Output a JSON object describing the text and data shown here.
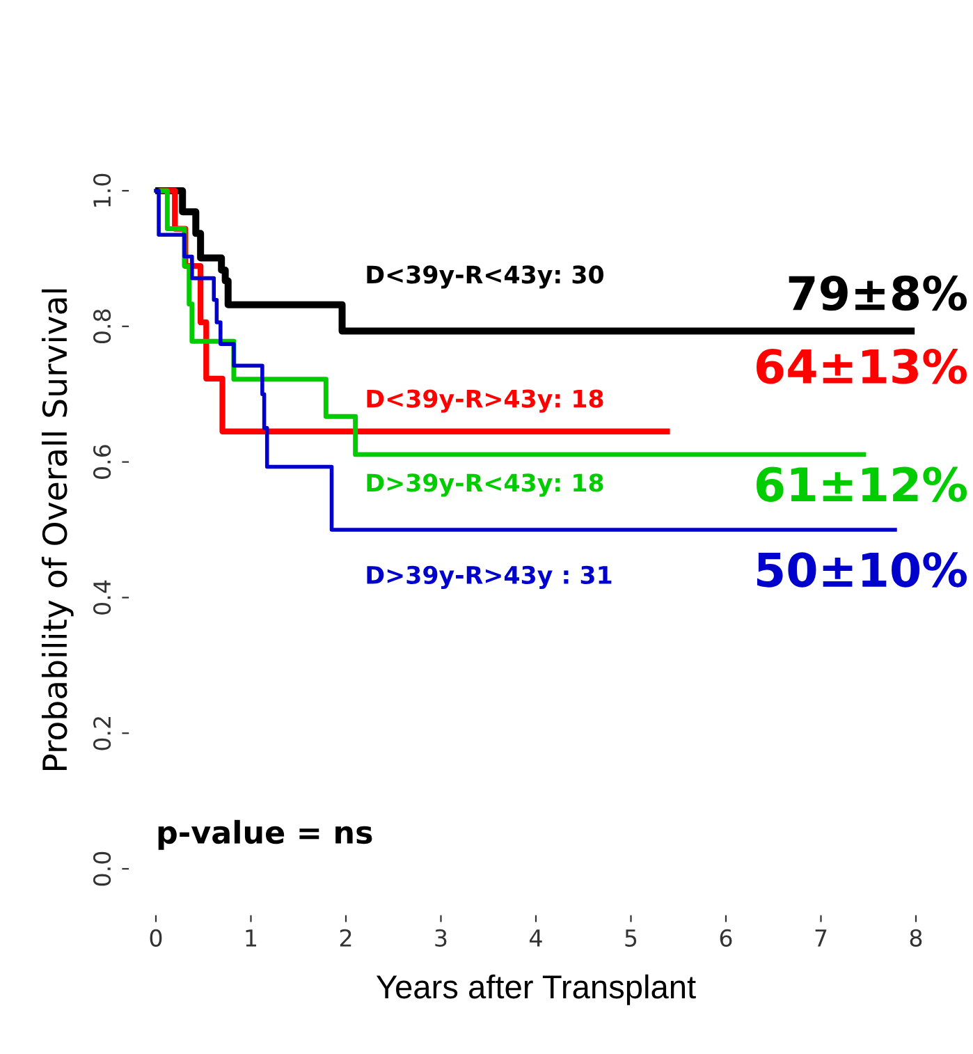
{
  "chart_data": {
    "type": "step",
    "xlabel": "Years after Transplant",
    "ylabel": "Probability of Overall Survival",
    "xlim": [
      0,
      8
    ],
    "ylim": [
      0,
      1
    ],
    "xticks": [
      0,
      1,
      2,
      3,
      4,
      5,
      6,
      7,
      8
    ],
    "yticks": [
      {
        "value": 0,
        "label": "0.0"
      },
      {
        "value": 0.2,
        "label": "0.2"
      },
      {
        "value": 0.4,
        "label": "0.4"
      },
      {
        "value": 0.6,
        "label": "0.6"
      },
      {
        "value": 0.8,
        "label": "0.8"
      },
      {
        "value": 1,
        "label": "1.0"
      }
    ],
    "grid": false,
    "legend": false,
    "line_style": "solid",
    "series": [
      {
        "name": "D<39y-R<43y: 30",
        "color": "#000000",
        "x": [
          0.03,
          0.28,
          0.42,
          0.47,
          0.69,
          0.73,
          0.76,
          1.96,
          7.95
        ],
        "values": [
          1.0,
          0.969,
          0.937,
          0.901,
          0.883,
          0.867,
          0.832,
          0.793,
          0.793
        ]
      },
      {
        "name": "D<39y-R>43y: 18",
        "color": "#ff0000",
        "x": [
          0.07,
          0.2,
          0.31,
          0.47,
          0.53,
          0.7,
          5.38
        ],
        "values": [
          1.0,
          0.944,
          0.889,
          0.806,
          0.723,
          0.645,
          0.645
        ]
      },
      {
        "name": "D>39y-R<43y: 18",
        "color": "#00cc00",
        "x": [
          0.05,
          0.12,
          0.3,
          0.35,
          0.38,
          0.82,
          1.79,
          2.1,
          7.45
        ],
        "values": [
          1.0,
          0.944,
          0.889,
          0.833,
          0.778,
          0.722,
          0.667,
          0.611,
          0.611
        ]
      },
      {
        "name": "D>39y-R>43y : 31",
        "color": "#0000cc",
        "x": [
          0.0,
          0.03,
          0.3,
          0.38,
          0.61,
          0.64,
          0.68,
          0.82,
          1.12,
          1.14,
          1.17,
          1.85,
          7.78
        ],
        "values": [
          1.0,
          0.935,
          0.903,
          0.871,
          0.839,
          0.806,
          0.774,
          0.742,
          0.7,
          0.65,
          0.593,
          0.5,
          0.5
        ]
      }
    ],
    "annotations": [
      "79±8%",
      "64±13%",
      "61±12%",
      "50±10%",
      "p-value = ns"
    ]
  }
}
